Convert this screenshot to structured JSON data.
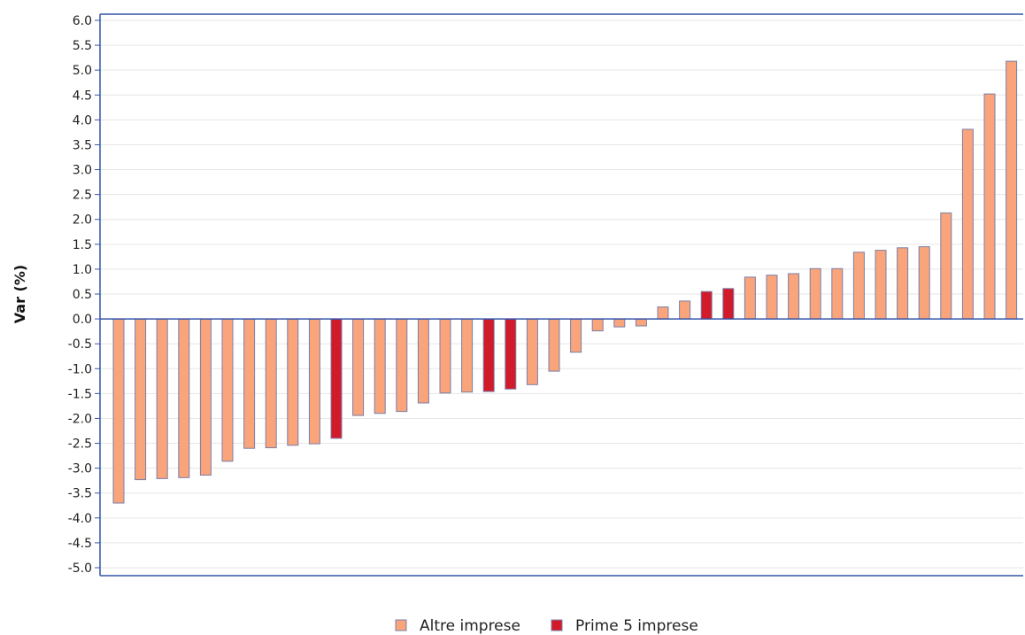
{
  "chart_data": {
    "type": "bar",
    "title": "",
    "xlabel": "",
    "ylabel": "Var (%)",
    "ylim": [
      -5.0,
      6.0
    ],
    "ytick_step": 0.5,
    "grid": true,
    "legend_position": "bottom-center",
    "series": [
      {
        "name": "Altre imprese",
        "color": "#f9a47b"
      },
      {
        "name": "Prime 5 imprese",
        "color": "#d11a2a"
      }
    ],
    "values": [
      -3.7,
      -3.23,
      -3.21,
      -3.19,
      -3.14,
      -2.86,
      -2.6,
      -2.59,
      -2.54,
      -2.51,
      -2.4,
      -1.94,
      -1.9,
      -1.86,
      -1.69,
      -1.49,
      -1.47,
      -1.46,
      -1.41,
      -1.32,
      -1.05,
      -0.67,
      -0.24,
      -0.16,
      -0.14,
      0.24,
      0.36,
      0.55,
      0.61,
      0.84,
      0.88,
      0.91,
      1.01,
      1.01,
      1.34,
      1.38,
      1.43,
      1.45,
      2.13,
      3.81,
      4.52,
      5.18
    ],
    "groups": [
      0,
      0,
      0,
      0,
      0,
      0,
      0,
      0,
      0,
      0,
      1,
      0,
      0,
      0,
      0,
      0,
      0,
      1,
      1,
      0,
      0,
      0,
      0,
      0,
      0,
      0,
      0,
      1,
      1,
      0,
      0,
      0,
      0,
      0,
      0,
      0,
      0,
      0,
      0,
      0,
      0,
      0
    ]
  }
}
